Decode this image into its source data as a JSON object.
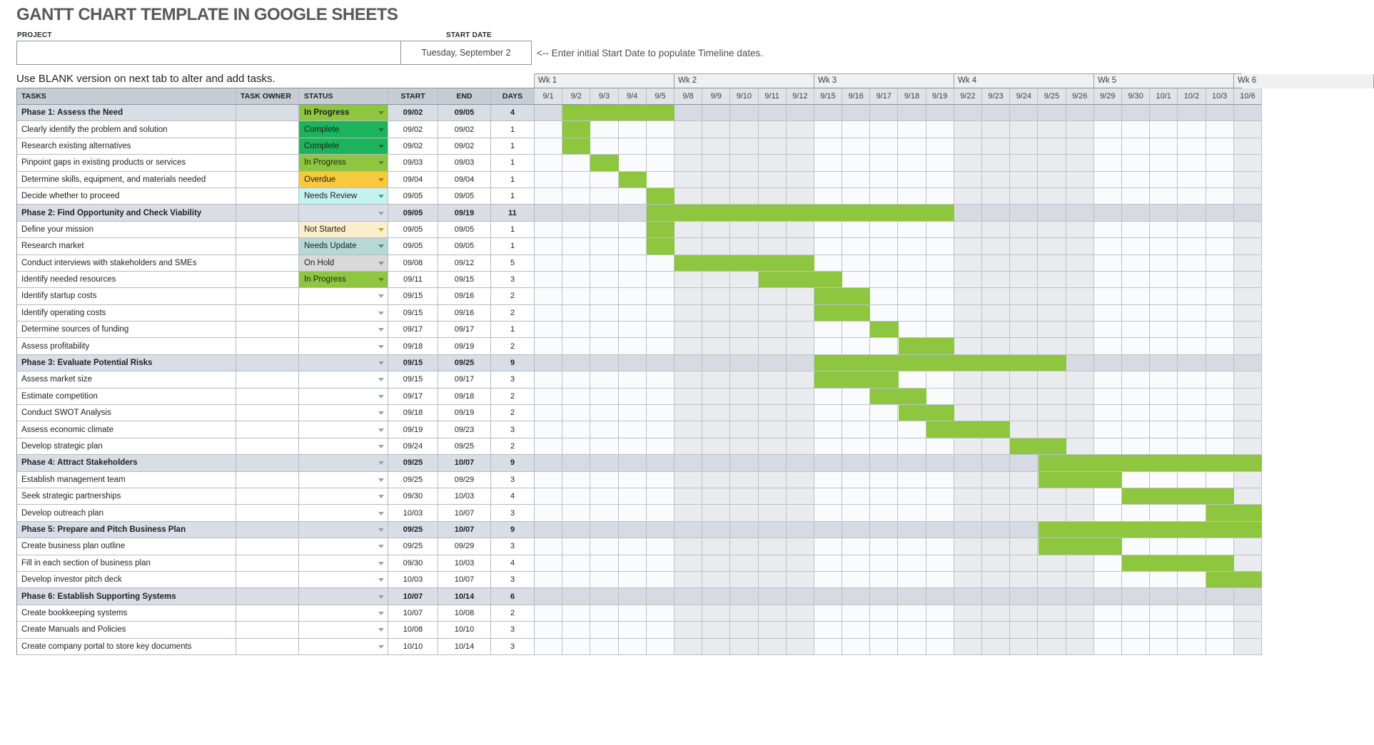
{
  "title": "GANTT CHART TEMPLATE IN GOOGLE SHEETS",
  "form": {
    "project_label": "PROJECT",
    "project_value": "",
    "start_date_label": "START DATE",
    "start_date_value": "Tuesday, September 2",
    "helper_text": "<-- Enter initial Start Date to populate Timeline dates."
  },
  "note": "Use BLANK version on next tab to alter and add tasks.",
  "colors": {
    "bar_green": "#8ec63f",
    "status": {
      "in-progress": "#8ec63f",
      "complete": "#1db35b",
      "overdue": "#f8c940",
      "needs-review": "#c4f2ee",
      "not-started": "#fbeecb",
      "needs-update": "#b6d9d5",
      "on-hold": "#d9d9d9"
    }
  },
  "table": {
    "columns": [
      "TASKS",
      "TASK OWNER",
      "STATUS",
      "START",
      "END",
      "DAYS"
    ],
    "weeks": [
      "Wk 1",
      "Wk 2",
      "Wk 3",
      "Wk 4",
      "Wk 5",
      "Wk 6"
    ],
    "dates": [
      "9/1",
      "9/2",
      "9/3",
      "9/4",
      "9/5",
      "9/8",
      "9/9",
      "9/10",
      "9/11",
      "9/12",
      "9/15",
      "9/16",
      "9/17",
      "9/18",
      "9/19",
      "9/22",
      "9/23",
      "9/24",
      "9/25",
      "9/26",
      "9/29",
      "9/30",
      "10/1",
      "10/2",
      "10/3",
      "10/6"
    ],
    "rows": [
      {
        "task": "Phase 1: Assess the Need",
        "owner": "",
        "status": "In Progress",
        "status_key": "in-progress",
        "start": "09/02",
        "end": "09/05",
        "days": "4",
        "is_phase": true,
        "bar": [
          1,
          4
        ]
      },
      {
        "task": "Clearly identify the problem and solution",
        "owner": "",
        "status": "Complete",
        "status_key": "complete",
        "start": "09/02",
        "end": "09/02",
        "days": "1",
        "is_phase": false,
        "bar": [
          1,
          1
        ]
      },
      {
        "task": "Research existing alternatives",
        "owner": "",
        "status": "Complete",
        "status_key": "complete",
        "start": "09/02",
        "end": "09/02",
        "days": "1",
        "is_phase": false,
        "bar": [
          1,
          1
        ]
      },
      {
        "task": "Pinpoint gaps in existing products or services",
        "owner": "",
        "status": "In Progress",
        "status_key": "in-progress",
        "start": "09/03",
        "end": "09/03",
        "days": "1",
        "is_phase": false,
        "bar": [
          2,
          2
        ]
      },
      {
        "task": "Determine skills, equipment, and materials needed",
        "owner": "",
        "status": "Overdue",
        "status_key": "overdue",
        "start": "09/04",
        "end": "09/04",
        "days": "1",
        "is_phase": false,
        "bar": [
          3,
          3
        ]
      },
      {
        "task": "Decide whether to proceed",
        "owner": "",
        "status": "Needs Review",
        "status_key": "needs-review",
        "start": "09/05",
        "end": "09/05",
        "days": "1",
        "is_phase": false,
        "bar": [
          4,
          4
        ]
      },
      {
        "task": "Phase 2: Find Opportunity and Check Viability",
        "owner": "",
        "status": "",
        "status_key": "empty",
        "start": "09/05",
        "end": "09/19",
        "days": "11",
        "is_phase": true,
        "bar": [
          4,
          14
        ]
      },
      {
        "task": "Define your mission",
        "owner": "",
        "status": "Not Started",
        "status_key": "not-started",
        "start": "09/05",
        "end": "09/05",
        "days": "1",
        "is_phase": false,
        "bar": [
          4,
          4
        ]
      },
      {
        "task": "Research market",
        "owner": "",
        "status": "Needs Update",
        "status_key": "needs-update",
        "start": "09/05",
        "end": "09/05",
        "days": "1",
        "is_phase": false,
        "bar": [
          4,
          4
        ]
      },
      {
        "task": "Conduct interviews with stakeholders and SMEs",
        "owner": "",
        "status": "On Hold",
        "status_key": "on-hold",
        "start": "09/08",
        "end": "09/12",
        "days": "5",
        "is_phase": false,
        "bar": [
          5,
          9
        ]
      },
      {
        "task": "Identify needed resources",
        "owner": "",
        "status": "In Progress",
        "status_key": "in-progress",
        "start": "09/11",
        "end": "09/15",
        "days": "3",
        "is_phase": false,
        "bar": [
          8,
          10
        ]
      },
      {
        "task": "Identify startup costs",
        "owner": "",
        "status": "",
        "status_key": "empty",
        "start": "09/15",
        "end": "09/16",
        "days": "2",
        "is_phase": false,
        "bar": [
          10,
          11
        ]
      },
      {
        "task": "Identify operating costs",
        "owner": "",
        "status": "",
        "status_key": "empty",
        "start": "09/15",
        "end": "09/16",
        "days": "2",
        "is_phase": false,
        "bar": [
          10,
          11
        ]
      },
      {
        "task": "Determine sources of funding",
        "owner": "",
        "status": "",
        "status_key": "empty",
        "start": "09/17",
        "end": "09/17",
        "days": "1",
        "is_phase": false,
        "bar": [
          12,
          12
        ]
      },
      {
        "task": "Assess profitability",
        "owner": "",
        "status": "",
        "status_key": "empty",
        "start": "09/18",
        "end": "09/19",
        "days": "2",
        "is_phase": false,
        "bar": [
          13,
          14
        ]
      },
      {
        "task": "Phase 3: Evaluate Potential Risks",
        "owner": "",
        "status": "",
        "status_key": "empty",
        "start": "09/15",
        "end": "09/25",
        "days": "9",
        "is_phase": true,
        "bar": [
          10,
          18
        ]
      },
      {
        "task": "Assess market size",
        "owner": "",
        "status": "",
        "status_key": "empty",
        "start": "09/15",
        "end": "09/17",
        "days": "3",
        "is_phase": false,
        "bar": [
          10,
          12
        ]
      },
      {
        "task": "Estimate competition",
        "owner": "",
        "status": "",
        "status_key": "empty",
        "start": "09/17",
        "end": "09/18",
        "days": "2",
        "is_phase": false,
        "bar": [
          12,
          13
        ]
      },
      {
        "task": "Conduct SWOT Analysis",
        "owner": "",
        "status": "",
        "status_key": "empty",
        "start": "09/18",
        "end": "09/19",
        "days": "2",
        "is_phase": false,
        "bar": [
          13,
          14
        ]
      },
      {
        "task": "Assess economic climate",
        "owner": "",
        "status": "",
        "status_key": "empty",
        "start": "09/19",
        "end": "09/23",
        "days": "3",
        "is_phase": false,
        "bar": [
          14,
          16
        ]
      },
      {
        "task": "Develop strategic plan",
        "owner": "",
        "status": "",
        "status_key": "empty",
        "start": "09/24",
        "end": "09/25",
        "days": "2",
        "is_phase": false,
        "bar": [
          17,
          18
        ]
      },
      {
        "task": "Phase 4: Attract Stakeholders",
        "owner": "",
        "status": "",
        "status_key": "empty",
        "start": "09/25",
        "end": "10/07",
        "days": "9",
        "is_phase": true,
        "bar": [
          18,
          25
        ]
      },
      {
        "task": "Establish management team",
        "owner": "",
        "status": "",
        "status_key": "empty",
        "start": "09/25",
        "end": "09/29",
        "days": "3",
        "is_phase": false,
        "bar": [
          18,
          20
        ]
      },
      {
        "task": "Seek strategic partnerships",
        "owner": "",
        "status": "",
        "status_key": "empty",
        "start": "09/30",
        "end": "10/03",
        "days": "4",
        "is_phase": false,
        "bar": [
          21,
          24
        ]
      },
      {
        "task": "Develop outreach plan",
        "owner": "",
        "status": "",
        "status_key": "empty",
        "start": "10/03",
        "end": "10/07",
        "days": "3",
        "is_phase": false,
        "bar": [
          24,
          25
        ]
      },
      {
        "task": "Phase 5: Prepare and Pitch Business Plan",
        "owner": "",
        "status": "",
        "status_key": "empty",
        "start": "09/25",
        "end": "10/07",
        "days": "9",
        "is_phase": true,
        "bar": [
          18,
          25
        ]
      },
      {
        "task": "Create business plan outline",
        "owner": "",
        "status": "",
        "status_key": "empty",
        "start": "09/25",
        "end": "09/29",
        "days": "3",
        "is_phase": false,
        "bar": [
          18,
          20
        ]
      },
      {
        "task": "Fill in each section of business plan",
        "owner": "",
        "status": "",
        "status_key": "empty",
        "start": "09/30",
        "end": "10/03",
        "days": "4",
        "is_phase": false,
        "bar": [
          21,
          24
        ]
      },
      {
        "task": "Develop investor pitch deck",
        "owner": "",
        "status": "",
        "status_key": "empty",
        "start": "10/03",
        "end": "10/07",
        "days": "3",
        "is_phase": false,
        "bar": [
          24,
          25
        ]
      },
      {
        "task": "Phase 6: Establish Supporting Systems",
        "owner": "",
        "status": "",
        "status_key": "empty",
        "start": "10/07",
        "end": "10/14",
        "days": "6",
        "is_phase": true,
        "bar": null
      },
      {
        "task": "Create bookkeeping systems",
        "owner": "",
        "status": "",
        "status_key": "empty",
        "start": "10/07",
        "end": "10/08",
        "days": "2",
        "is_phase": false,
        "bar": null
      },
      {
        "task": "Create Manuals and Policies",
        "owner": "",
        "status": "",
        "status_key": "empty",
        "start": "10/08",
        "end": "10/10",
        "days": "3",
        "is_phase": false,
        "bar": null
      },
      {
        "task": "Create company portal to store key documents",
        "owner": "",
        "status": "",
        "status_key": "empty",
        "start": "10/10",
        "end": "10/14",
        "days": "3",
        "is_phase": false,
        "bar": null
      }
    ]
  }
}
